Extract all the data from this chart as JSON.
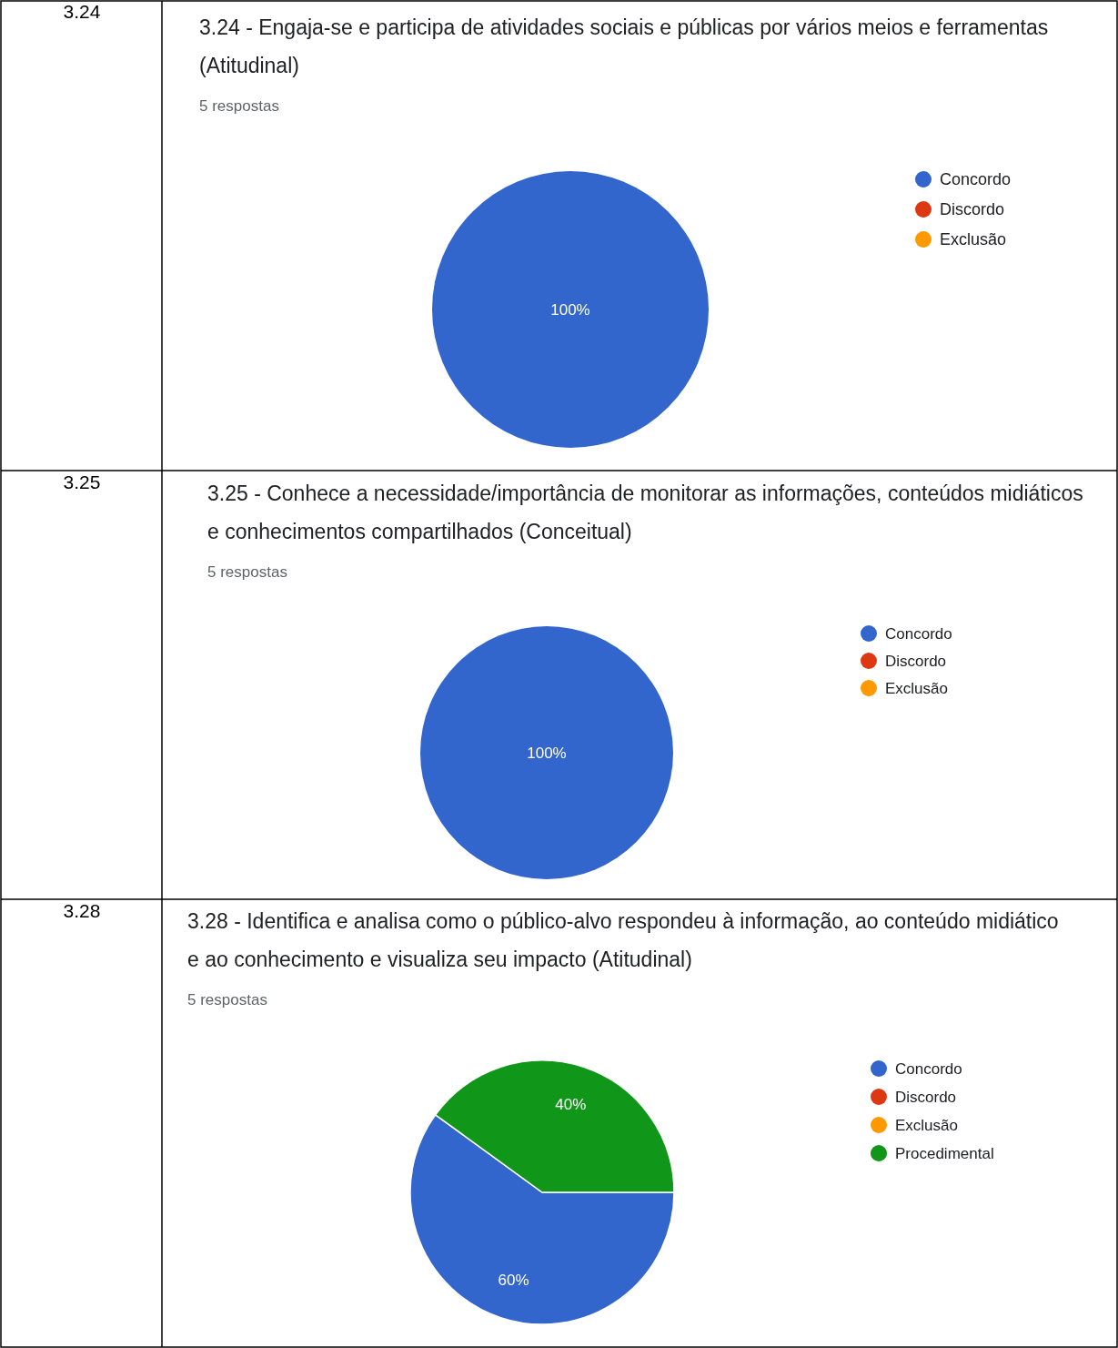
{
  "chart_data": [
    {
      "type": "pie",
      "title": "3.24 - Engaja-se e participa de atividades sociais e públicas por vários meios e ferramentas (Atitudinal)",
      "subtitle": "5 respostas",
      "annotations": [
        "3.24"
      ],
      "categories": [
        "Concordo",
        "Discordo",
        "Exclusão"
      ],
      "values": [
        100,
        0,
        0
      ],
      "value_labels": [
        "100%",
        null,
        null
      ],
      "colors": [
        "#3366cc",
        "#dc3912",
        "#ff9900"
      ],
      "legend": "right"
    },
    {
      "type": "pie",
      "title": "3.25 - Conhece a necessidade/importância de monitorar as informações, conteúdos midiáticos e conhecimentos compartilhados (Conceitual)",
      "subtitle": "5 respostas",
      "annotations": [
        "3.25"
      ],
      "categories": [
        "Concordo",
        "Discordo",
        "Exclusão"
      ],
      "values": [
        100,
        0,
        0
      ],
      "value_labels": [
        "100%",
        null,
        null
      ],
      "colors": [
        "#3366cc",
        "#dc3912",
        "#ff9900"
      ],
      "legend": "right"
    },
    {
      "type": "pie",
      "title": "3.28 - Identifica e analisa como o público-alvo respondeu à informação, ao conteúdo midiático e ao conhecimento e visualiza seu impacto (Atitudinal)",
      "subtitle": "5 respostas",
      "annotations": [
        "3.28"
      ],
      "categories": [
        "Concordo",
        "Discordo",
        "Exclusão",
        "Procedimental"
      ],
      "values": [
        60,
        0,
        0,
        40
      ],
      "value_labels": [
        "60%",
        null,
        null,
        "40%"
      ],
      "colors": [
        "#3366cc",
        "#dc3912",
        "#ff9900",
        "#109618"
      ],
      "legend": "right"
    }
  ]
}
